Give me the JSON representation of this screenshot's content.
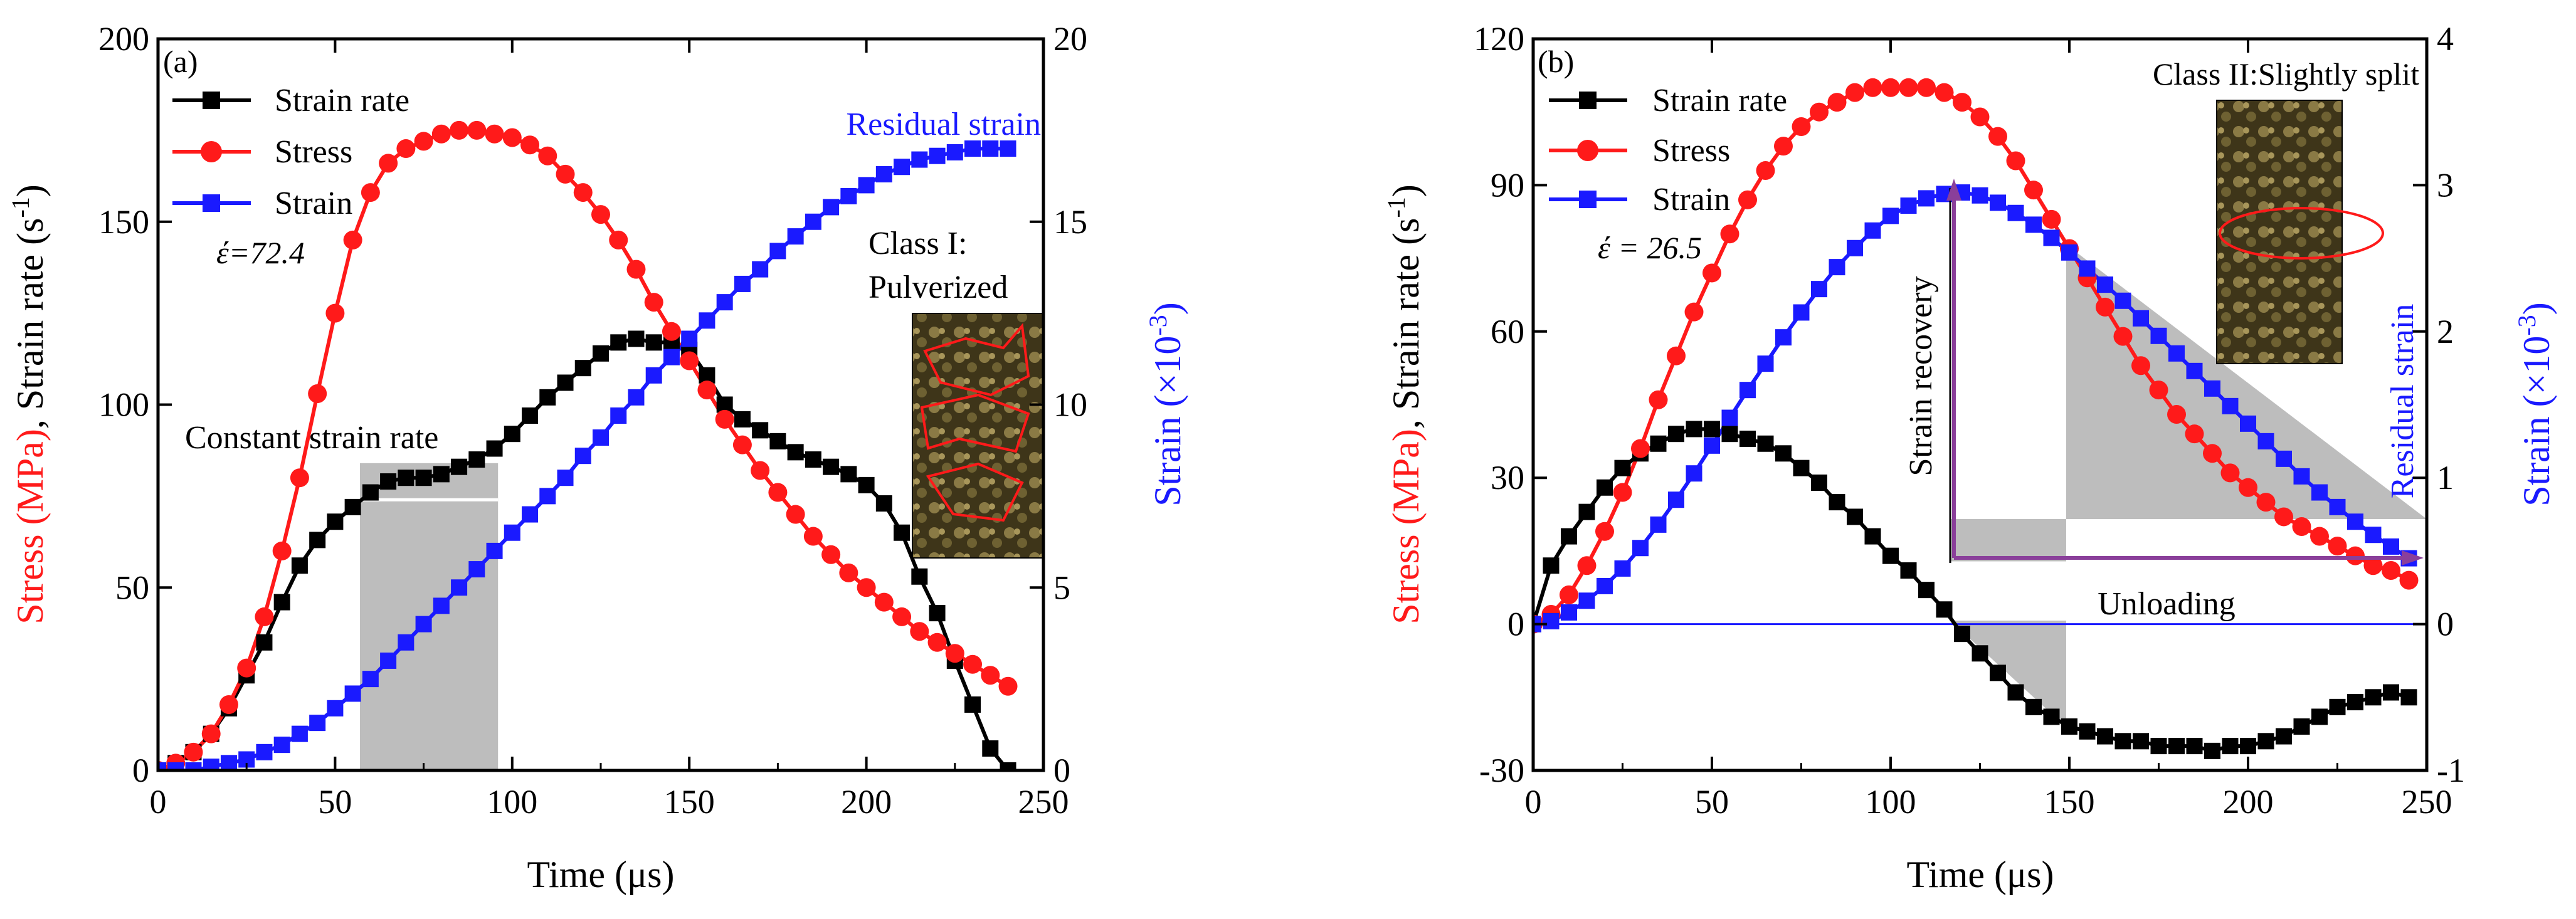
{
  "colors": {
    "black": "#000000",
    "red": "#ff1a1a",
    "blue": "#1a1aff",
    "shade": "#bdbdbd",
    "purple": "#8a3f9a",
    "photo": "#4a3f22"
  },
  "chart_data": [
    {
      "type": "line",
      "panel_label": "(a)",
      "xlabel": "Time (μs)",
      "ylabel_left_parts": [
        "Stress (MPa)",
        ", Strain rate (s",
        "-1",
        ")"
      ],
      "ylabel_right_parts": [
        "Strain (×10",
        "-3",
        ")"
      ],
      "xlim": [
        0,
        250
      ],
      "ylim_left": [
        0,
        200
      ],
      "ylim_right": [
        0,
        20
      ],
      "x_ticks": [
        0,
        50,
        100,
        150,
        200,
        250
      ],
      "x_tick_labels": [
        "0",
        "50",
        "100",
        "150",
        "200",
        "250"
      ],
      "y_left_ticks": [
        0,
        50,
        100,
        150,
        200
      ],
      "y_left_tick_labels": [
        "0",
        "50",
        "100",
        "150",
        "200"
      ],
      "y_right_ticks": [
        0,
        5,
        10,
        15,
        20
      ],
      "y_right_tick_labels": [
        "0",
        "5",
        "10",
        "15",
        "20"
      ],
      "legend": [
        "Strain rate",
        "Stress",
        "Strain"
      ],
      "strain_rate_note": "έ=72.4",
      "annotations": {
        "residual": "Residual strain",
        "class_line1": "Class I:",
        "class_line2": "Pulverized",
        "constant": "Constant strain rate"
      },
      "shade_x": [
        57,
        96
      ],
      "series": [
        {
          "name": "Strain rate",
          "axis": "left",
          "marker": "square",
          "x": [
            0,
            5,
            10,
            15,
            20,
            25,
            30,
            35,
            40,
            45,
            50,
            55,
            60,
            65,
            70,
            75,
            80,
            85,
            90,
            95,
            100,
            105,
            110,
            115,
            120,
            125,
            130,
            135,
            140,
            145,
            150,
            155,
            160,
            165,
            170,
            175,
            180,
            185,
            190,
            195,
            200,
            205,
            210,
            215,
            220,
            225,
            230,
            235,
            240
          ],
          "values": [
            0,
            2,
            5,
            10,
            17,
            26,
            35,
            46,
            56,
            63,
            68,
            72,
            76,
            79,
            80,
            80,
            81,
            83,
            85,
            88,
            92,
            97,
            102,
            106,
            110,
            114,
            117,
            118,
            117,
            117,
            115,
            108,
            100,
            96,
            93,
            90,
            87,
            85,
            83,
            81,
            78,
            73,
            65,
            53,
            43,
            30,
            18,
            6,
            0
          ]
        },
        {
          "name": "Stress",
          "axis": "left",
          "marker": "circle",
          "x": [
            0,
            5,
            10,
            15,
            20,
            25,
            30,
            35,
            40,
            45,
            50,
            55,
            60,
            65,
            70,
            75,
            80,
            85,
            90,
            95,
            100,
            105,
            110,
            115,
            120,
            125,
            130,
            135,
            140,
            145,
            150,
            155,
            160,
            165,
            170,
            175,
            180,
            185,
            190,
            195,
            200,
            205,
            210,
            215,
            220,
            225,
            230,
            235,
            240
          ],
          "values": [
            0,
            2,
            5,
            10,
            18,
            28,
            42,
            60,
            80,
            103,
            125,
            145,
            158,
            166,
            170,
            172,
            174,
            175,
            175,
            174,
            173,
            171,
            168,
            163,
            158,
            152,
            145,
            137,
            128,
            120,
            112,
            104,
            96,
            89,
            82,
            76,
            70,
            64,
            59,
            54,
            50,
            46,
            42,
            38,
            35,
            32,
            29,
            26,
            23
          ]
        },
        {
          "name": "Strain",
          "axis": "right",
          "marker": "square",
          "x": [
            0,
            5,
            10,
            15,
            20,
            25,
            30,
            35,
            40,
            45,
            50,
            55,
            60,
            65,
            70,
            75,
            80,
            85,
            90,
            95,
            100,
            105,
            110,
            115,
            120,
            125,
            130,
            135,
            140,
            145,
            150,
            155,
            160,
            165,
            170,
            175,
            180,
            185,
            190,
            195,
            200,
            205,
            210,
            215,
            220,
            225,
            230,
            235,
            240
          ],
          "values": [
            0,
            0,
            0,
            0.1,
            0.2,
            0.3,
            0.5,
            0.7,
            1.0,
            1.3,
            1.7,
            2.1,
            2.5,
            3.0,
            3.5,
            4.0,
            4.5,
            5.0,
            5.5,
            6.0,
            6.5,
            7.0,
            7.5,
            8.0,
            8.6,
            9.1,
            9.7,
            10.2,
            10.8,
            11.3,
            11.8,
            12.3,
            12.8,
            13.3,
            13.7,
            14.2,
            14.6,
            15.0,
            15.4,
            15.7,
            16.0,
            16.3,
            16.5,
            16.7,
            16.8,
            16.9,
            17.0,
            17.0,
            17.0
          ]
        }
      ]
    },
    {
      "type": "line",
      "panel_label": "(b)",
      "xlabel": "Time (μs)",
      "ylabel_left_parts": [
        "Stress (MPa)",
        ", Strain rate (s",
        "-1",
        ")"
      ],
      "ylabel_right_parts": [
        "Strain (×10",
        "-3",
        ")"
      ],
      "xlim": [
        0,
        250
      ],
      "ylim_left": [
        -30,
        120
      ],
      "ylim_right": [
        -1,
        4
      ],
      "x_ticks": [
        0,
        50,
        100,
        150,
        200,
        250
      ],
      "x_tick_labels": [
        "0",
        "50",
        "100",
        "150",
        "200",
        "250"
      ],
      "y_left_ticks": [
        -30,
        0,
        30,
        60,
        90,
        120
      ],
      "y_left_tick_labels": [
        "-30",
        "0",
        "30",
        "60",
        "90",
        "120"
      ],
      "y_right_ticks": [
        -1,
        0,
        1,
        2,
        3,
        4
      ],
      "y_right_tick_labels": [
        "-1",
        "0",
        "1",
        "2",
        "3",
        "4"
      ],
      "legend": [
        "Strain rate",
        "Stress",
        "Strain"
      ],
      "strain_rate_note": "έ = 26.5",
      "annotations": {
        "class": "Class II:Slightly split",
        "recovery": "Strain recovery",
        "unloading": "Unloading",
        "residual": "Residual strain"
      },
      "series": [
        {
          "name": "Strain rate",
          "axis": "left",
          "marker": "square",
          "x": [
            0,
            5,
            10,
            15,
            20,
            25,
            30,
            35,
            40,
            45,
            50,
            55,
            60,
            65,
            70,
            75,
            80,
            85,
            90,
            95,
            100,
            105,
            110,
            115,
            120,
            125,
            130,
            135,
            140,
            145,
            150,
            155,
            160,
            165,
            170,
            175,
            180,
            185,
            190,
            195,
            200,
            205,
            210,
            215,
            220,
            225,
            230,
            235,
            240,
            245
          ],
          "values": [
            0,
            12,
            18,
            23,
            28,
            32,
            35,
            37,
            39,
            40,
            40,
            39,
            38,
            37,
            35,
            32,
            29,
            25,
            22,
            18,
            14,
            11,
            7,
            3,
            -2,
            -6,
            -10,
            -14,
            -17,
            -19,
            -21,
            -22,
            -23,
            -24,
            -24,
            -25,
            -25,
            -25,
            -26,
            -25,
            -25,
            -24,
            -23,
            -21,
            -19,
            -17,
            -16,
            -15,
            -14,
            -15
          ]
        },
        {
          "name": "Stress",
          "axis": "left",
          "marker": "circle",
          "x": [
            0,
            5,
            10,
            15,
            20,
            25,
            30,
            35,
            40,
            45,
            50,
            55,
            60,
            65,
            70,
            75,
            80,
            85,
            90,
            95,
            100,
            105,
            110,
            115,
            120,
            125,
            130,
            135,
            140,
            145,
            150,
            155,
            160,
            165,
            170,
            175,
            180,
            185,
            190,
            195,
            200,
            205,
            210,
            215,
            220,
            225,
            230,
            235,
            240,
            245
          ],
          "values": [
            0,
            2,
            6,
            12,
            19,
            27,
            36,
            46,
            55,
            64,
            72,
            80,
            87,
            93,
            98,
            102,
            105,
            107,
            109,
            110,
            110,
            110,
            110,
            109,
            107,
            104,
            100,
            95,
            89,
            83,
            77,
            71,
            65,
            59,
            53,
            48,
            43,
            39,
            35,
            31,
            28,
            25,
            22,
            20,
            18,
            16,
            14,
            12,
            11,
            9
          ]
        },
        {
          "name": "Strain",
          "axis": "right",
          "marker": "square",
          "x": [
            0,
            5,
            10,
            15,
            20,
            25,
            30,
            35,
            40,
            45,
            50,
            55,
            60,
            65,
            70,
            75,
            80,
            85,
            90,
            95,
            100,
            105,
            110,
            115,
            120,
            125,
            130,
            135,
            140,
            145,
            150,
            155,
            160,
            165,
            170,
            175,
            180,
            185,
            190,
            195,
            200,
            205,
            210,
            215,
            220,
            225,
            230,
            235,
            240,
            245
          ],
          "values": [
            0.0,
            0.02,
            0.08,
            0.16,
            0.26,
            0.38,
            0.52,
            0.68,
            0.85,
            1.03,
            1.22,
            1.41,
            1.6,
            1.78,
            1.96,
            2.13,
            2.29,
            2.44,
            2.57,
            2.69,
            2.79,
            2.86,
            2.91,
            2.94,
            2.95,
            2.93,
            2.88,
            2.81,
            2.73,
            2.64,
            2.54,
            2.43,
            2.32,
            2.21,
            2.09,
            1.97,
            1.85,
            1.73,
            1.61,
            1.49,
            1.37,
            1.25,
            1.13,
            1.01,
            0.9,
            0.8,
            0.7,
            0.61,
            0.53,
            0.45
          ]
        }
      ]
    }
  ]
}
